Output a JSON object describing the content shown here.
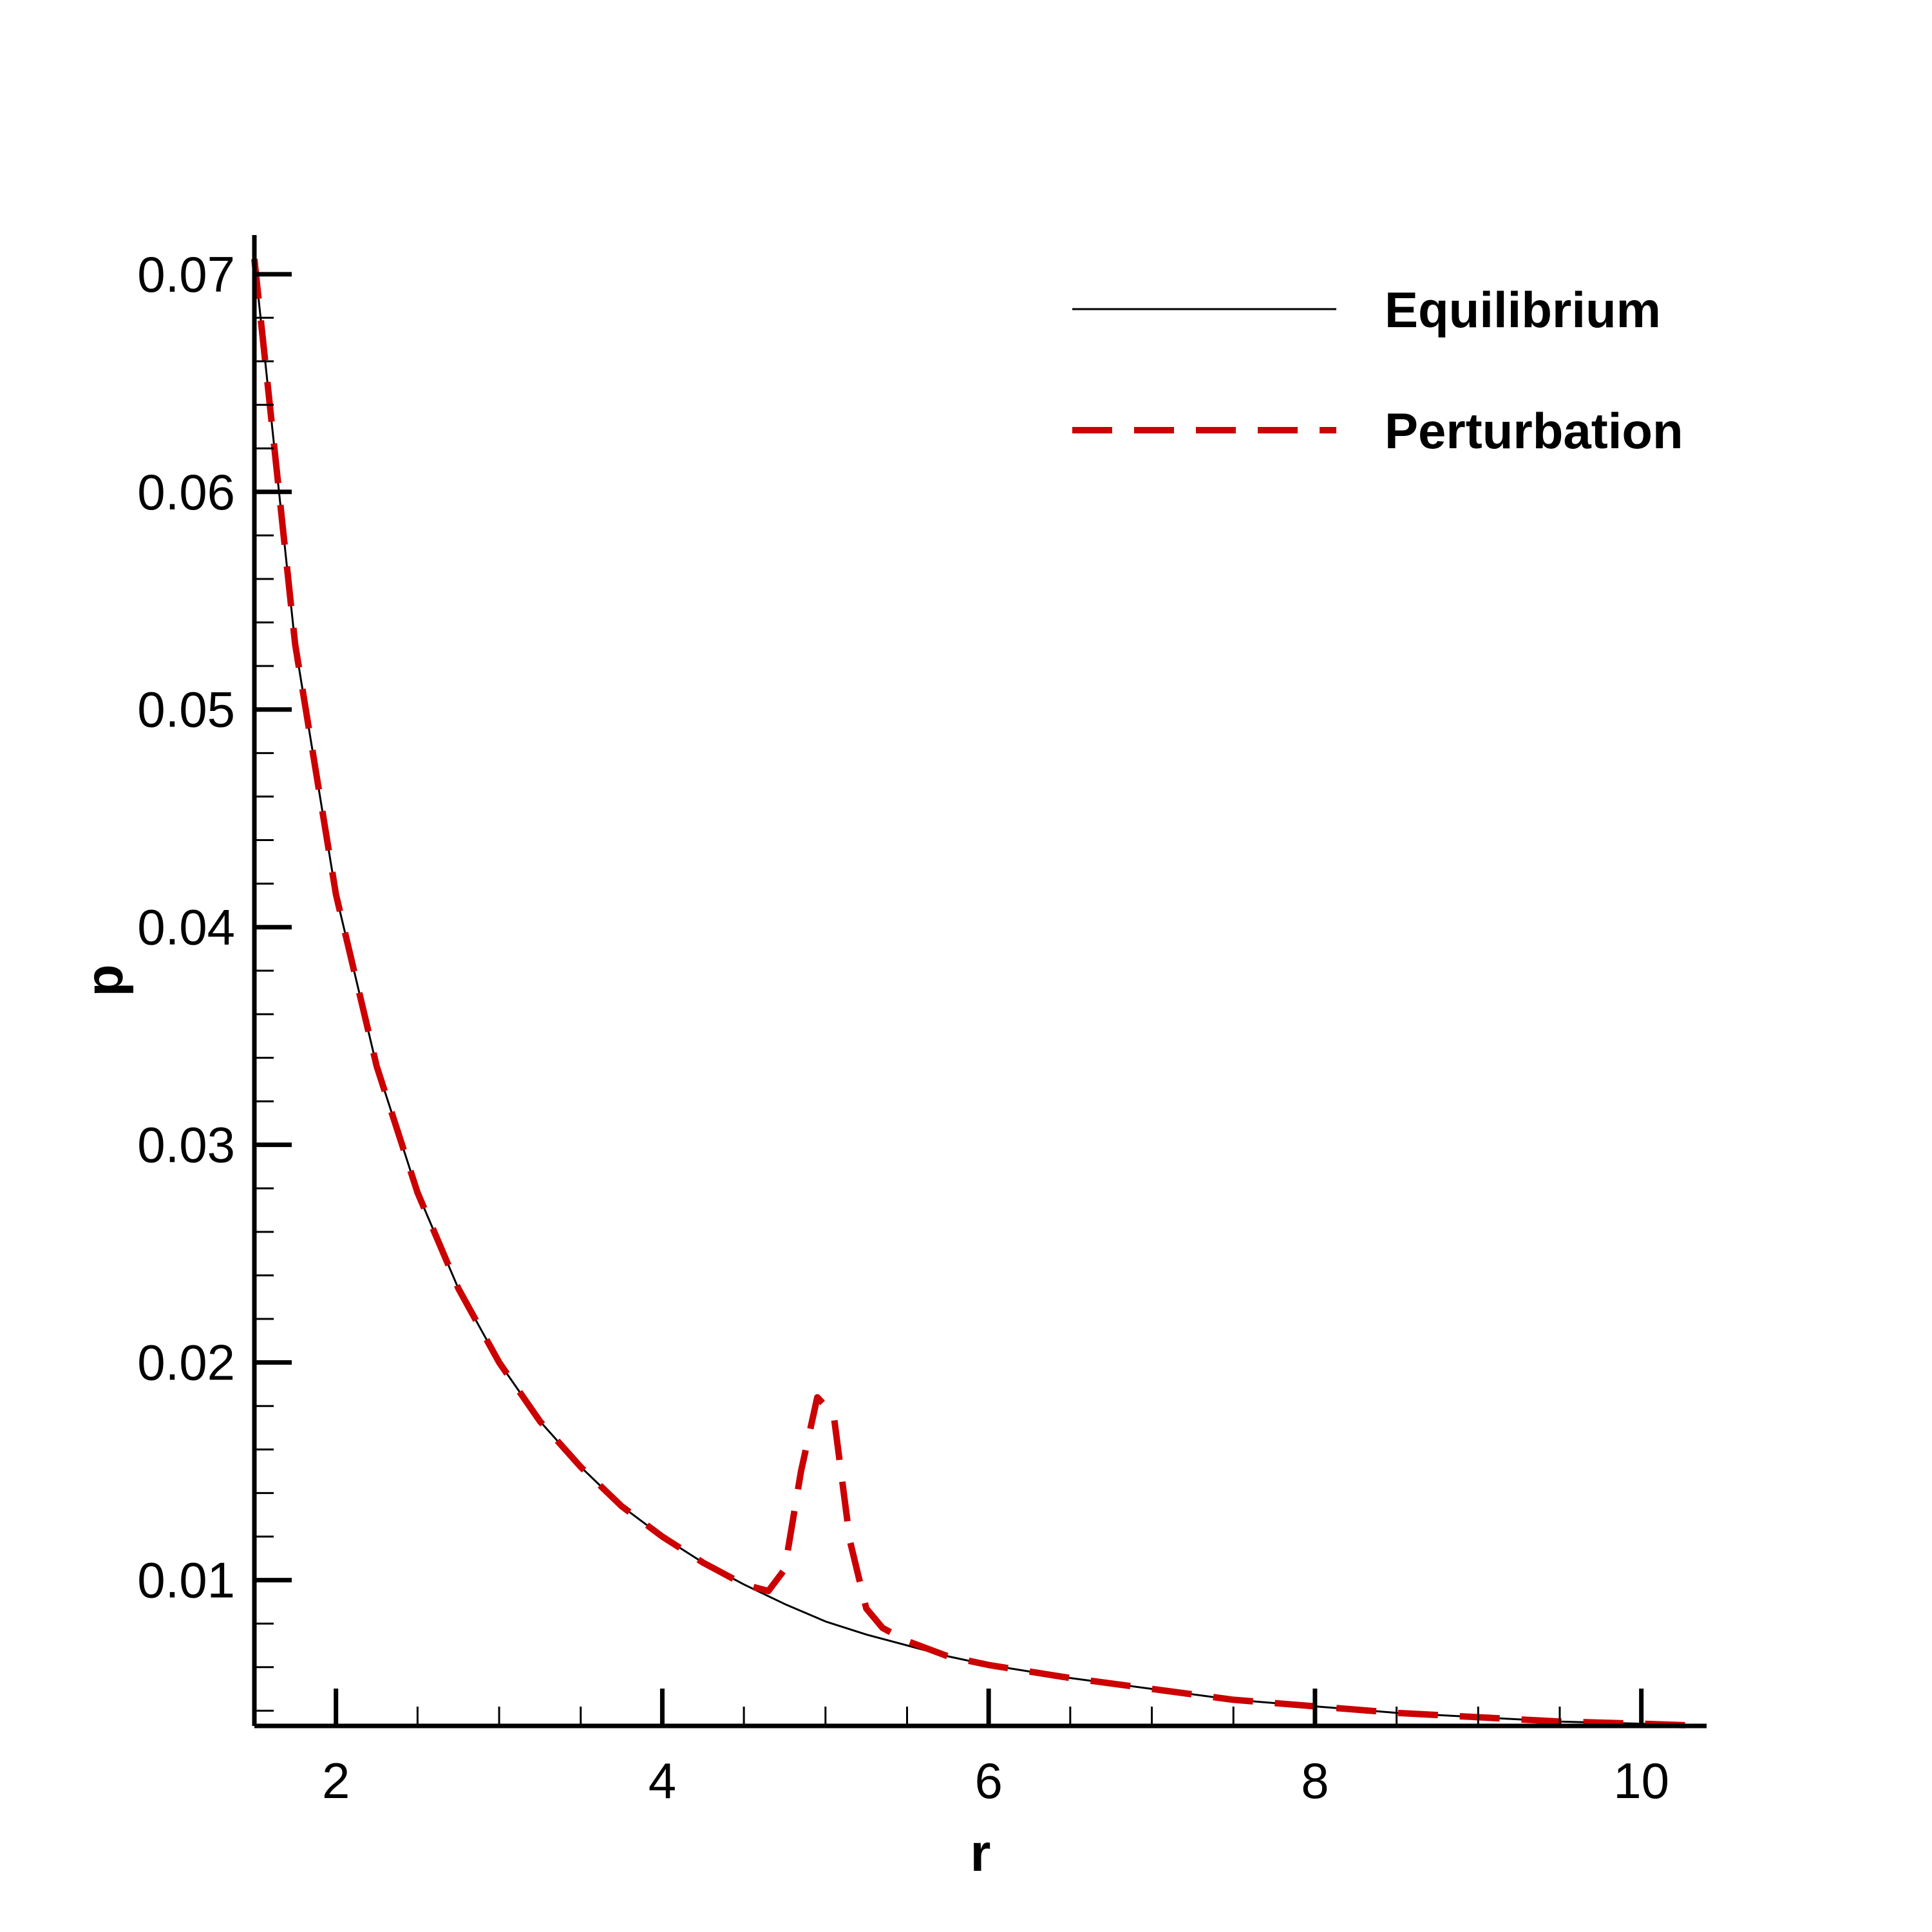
{
  "chart_data": {
    "type": "line",
    "title": "",
    "xlabel": "r",
    "ylabel": "p",
    "xlim": [
      1.5,
      10.4
    ],
    "ylim": [
      0.0033,
      0.0718
    ],
    "x_ticks": [
      2,
      4,
      6,
      8,
      10
    ],
    "x_tick_labels": [
      "2",
      "4",
      "6",
      "8",
      "10"
    ],
    "y_ticks": [
      0.01,
      0.02,
      0.03,
      0.04,
      0.05,
      0.06,
      0.07
    ],
    "y_tick_labels": [
      "0.01",
      "0.02",
      "0.03",
      "0.04",
      "0.05",
      "0.06",
      "0.07"
    ],
    "grid": false,
    "legend_position": "top-right",
    "series": [
      {
        "name": "Equilibrium",
        "color": "#000000",
        "style": "solid",
        "x": [
          1.5,
          1.75,
          2.0,
          2.25,
          2.5,
          2.75,
          3.0,
          3.25,
          3.5,
          3.75,
          4.0,
          4.25,
          4.5,
          4.75,
          5.0,
          5.25,
          5.5,
          5.75,
          6.0,
          6.5,
          7.0,
          7.5,
          8.0,
          8.5,
          9.0,
          9.5,
          10.0,
          10.4
        ],
        "y": [
          0.0707,
          0.053,
          0.0415,
          0.0336,
          0.0278,
          0.0234,
          0.02,
          0.0173,
          0.0152,
          0.0134,
          0.012,
          0.0108,
          0.0098,
          0.0089,
          0.0081,
          0.0075,
          0.007,
          0.0065,
          0.0061,
          0.0055,
          0.005,
          0.0045,
          0.0042,
          0.0039,
          0.0037,
          0.0035,
          0.0034,
          0.0033
        ]
      },
      {
        "name": "Perturbation",
        "color": "#cc0000",
        "style": "dashed",
        "x": [
          1.5,
          1.75,
          2.0,
          2.25,
          2.5,
          2.75,
          3.0,
          3.25,
          3.5,
          3.75,
          4.0,
          4.25,
          4.5,
          4.65,
          4.75,
          4.85,
          4.95,
          5.05,
          5.15,
          5.25,
          5.35,
          5.5,
          5.75,
          6.0,
          6.5,
          7.0,
          7.5,
          8.0,
          8.5,
          9.0,
          9.5,
          10.0,
          10.4
        ],
        "y": [
          0.0707,
          0.053,
          0.0415,
          0.0336,
          0.0278,
          0.0234,
          0.02,
          0.0173,
          0.0152,
          0.0134,
          0.012,
          0.0108,
          0.0098,
          0.0095,
          0.0105,
          0.015,
          0.0184,
          0.0176,
          0.0118,
          0.0087,
          0.0078,
          0.0072,
          0.0065,
          0.0061,
          0.0055,
          0.005,
          0.0045,
          0.0042,
          0.0039,
          0.0037,
          0.0035,
          0.0034,
          0.0033
        ]
      }
    ]
  }
}
